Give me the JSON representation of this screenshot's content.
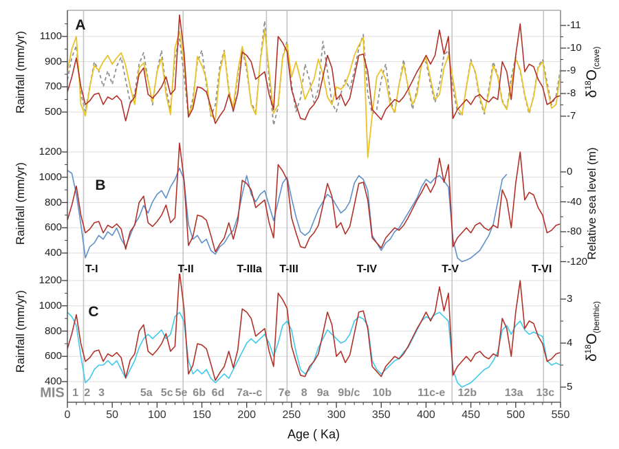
{
  "figure": {
    "description": "Three stacked paleoclimate time-series panels comparing a rainfall reconstruction (dark red) with cave d18O (A), relative sea level (B) and benthic d18O (C) over the last 550 ka",
    "background": "#ffffff"
  },
  "colors": {
    "rainfall_red": "#B03028",
    "rainfall_yellow": "#E9C32A",
    "cave_dashed_gray": "#8F8F8F",
    "sea_level_blue": "#5E8FCB",
    "benthic_cyan": "#3EC9EC",
    "gridline": "#DCDCDC",
    "termination_line": "#C4C4C4",
    "frame_gray": "#999999",
    "axis_dark": "#3A3A3A",
    "mis_gray": "#8A8A8A"
  },
  "chart_data": {
    "type": "line",
    "x_axis": {
      "label": "Age ( Ka)",
      "range": [
        0,
        550
      ],
      "tick_labels": [
        0,
        50,
        100,
        150,
        200,
        250,
        300,
        350,
        400,
        450,
        500,
        550
      ],
      "minor_step": 10
    },
    "panels": [
      {
        "id": "A",
        "letter": "A",
        "left_axis": {
          "label": "Rainfall (mm/yr)",
          "tick_labels": [
            1100,
            900,
            700,
            500
          ],
          "range": [
            280,
            1300
          ]
        },
        "right_axis": {
          "label_parts": {
            "delta": "δ",
            "sup": "18",
            "main": "O",
            "sub": "(cave)"
          },
          "tick_labels": [
            -11,
            -10,
            -9,
            -8,
            -7
          ],
          "inverted": true
        },
        "series": [
          {
            "name": "cave-d18o-dashed",
            "data": "cave_d18o",
            "axis": "right",
            "color": "#8F8F8F",
            "dash": "5 4",
            "width": 1.8
          },
          {
            "name": "rainfall-yellow",
            "data": "rainfall_yellow",
            "axis": "left",
            "color": "#E9C32A",
            "dash": "",
            "width": 1.8
          },
          {
            "name": "rainfall-red",
            "data": "rainfall_red",
            "axis": "left",
            "color": "#B03028",
            "dash": "",
            "width": 1.6
          }
        ]
      },
      {
        "id": "B",
        "letter": "B",
        "left_axis": {
          "label": "Rainfall (mm/yr)",
          "tick_labels": [
            1200,
            1000,
            800,
            600,
            400
          ],
          "range": [
            280,
            1290
          ]
        },
        "right_axis": {
          "label": "Relative sea level (m)",
          "tick_labels": [
            0,
            -40,
            -80,
            -120
          ]
        },
        "series": [
          {
            "name": "sea-level-blue",
            "data": "sea_level",
            "axis": "right",
            "color": "#5E8FCB",
            "dash": "",
            "width": 1.6
          },
          {
            "name": "rainfall-red",
            "data": "rainfall_red",
            "axis": "left",
            "color": "#B03028",
            "dash": "",
            "width": 1.6
          }
        ]
      },
      {
        "id": "C",
        "letter": "C",
        "left_axis": {
          "label": "Rainfall (mm/yr)",
          "tick_labels": [
            1200,
            1000,
            800,
            600,
            400
          ],
          "range": [
            300,
            1250
          ]
        },
        "right_axis": {
          "label_parts": {
            "delta": "δ",
            "sup": "18",
            "main": "O",
            "sub": "(benthic)"
          },
          "tick_labels": [
            3,
            4,
            5
          ],
          "inverted": true
        },
        "series": [
          {
            "name": "benthic-d18o-cyan",
            "data": "benthic_d18o",
            "axis": "right",
            "color": "#3EC9EC",
            "dash": "",
            "width": 1.6
          },
          {
            "name": "rainfall-red",
            "data": "rainfall_red",
            "axis": "left",
            "color": "#B03028",
            "dash": "",
            "width": 1.6
          }
        ]
      }
    ],
    "series_data": {
      "rainfall_red": {
        "unit": "mm/yr",
        "x_start": 0,
        "x_step": 5,
        "values": [
          660,
          780,
          930,
          700,
          560,
          590,
          640,
          650,
          560,
          620,
          600,
          630,
          590,
          430,
          570,
          620,
          800,
          850,
          640,
          610,
          650,
          700,
          780,
          640,
          680,
          1270,
          980,
          460,
          530,
          700,
          690,
          660,
          540,
          410,
          470,
          520,
          640,
          510,
          650,
          975,
          950,
          900,
          760,
          790,
          820,
          640,
          520,
          1100,
          1050,
          980,
          680,
          560,
          450,
          440,
          520,
          560,
          620,
          780,
          950,
          850,
          600,
          640,
          550,
          610,
          780,
          950,
          960,
          820,
          520,
          480,
          440,
          520,
          560,
          600,
          580,
          620,
          680,
          750,
          820,
          880,
          950,
          880,
          950,
          1150,
          960,
          1100,
          450,
          520,
          560,
          600,
          560,
          620,
          640,
          600,
          580,
          620,
          600,
          900,
          820,
          600,
          950,
          1200,
          820,
          880,
          860,
          760,
          700,
          560,
          580,
          620,
          630
        ]
      },
      "rainfall_yellow": {
        "unit": "mm/yr",
        "x_start": 0,
        "x_step": 5,
        "values": [
          830,
          1000,
          1100,
          560,
          470,
          700,
          870,
          830,
          900,
          950,
          880,
          930,
          970,
          870,
          700,
          560,
          850,
          890,
          750,
          580,
          820,
          930,
          640,
          480,
          1010,
          1140,
          900,
          480,
          560,
          940,
          870,
          760,
          480,
          440,
          820,
          980,
          660,
          540,
          820,
          1020,
          870,
          560,
          480,
          900,
          1150,
          830,
          490,
          560,
          930,
          1040,
          780,
          900,
          760,
          600,
          680,
          760,
          920,
          800,
          620,
          560,
          700,
          680,
          720,
          820,
          950,
          1030,
          1090,
          140,
          480,
          780,
          840,
          760,
          560,
          500,
          720,
          880,
          700,
          560,
          640,
          880,
          930,
          760,
          600,
          640,
          850,
          950,
          760,
          540,
          480,
          700,
          900,
          820,
          620,
          500,
          650,
          870,
          780,
          580,
          520,
          720,
          920,
          840,
          640,
          500,
          620,
          850,
          900,
          700,
          530,
          560,
          820
        ]
      },
      "cave_d18o": {
        "unit": "permil VPDB",
        "x_start": 0,
        "x_step": 5,
        "values": [
          -8.6,
          -9.6,
          -10.1,
          -8.0,
          -7.2,
          -8.3,
          -9.4,
          -9.0,
          -8.3,
          -9.0,
          -8.4,
          -9.2,
          -9.6,
          -8.6,
          -7.6,
          -8.0,
          -9.3,
          -9.8,
          -8.6,
          -7.5,
          -9.0,
          -9.9,
          -8.2,
          -7.3,
          -9.6,
          -10.4,
          -8.8,
          -7.0,
          -7.8,
          -9.4,
          -9.9,
          -8.4,
          -7.0,
          -7.5,
          -9.2,
          -9.9,
          -8.2,
          -7.2,
          -8.8,
          -10.0,
          -9.0,
          -7.6,
          -7.2,
          -9.4,
          -11.2,
          -8.6,
          -6.6,
          -7.4,
          -9.6,
          -10.3,
          -8.4,
          -7.2,
          -7.8,
          -9.3,
          -8.6,
          -7.6,
          -8.2,
          -10.3,
          -9.0,
          -7.6,
          -7.2,
          -8.0,
          -8.6,
          -8.2,
          -9.0,
          -10.0,
          -10.6,
          -8.0,
          -7.1,
          -7.3,
          -8.6,
          -9.3,
          -7.8,
          -7.1,
          -8.4,
          -9.5,
          -8.2,
          -7.3,
          -8.2,
          -9.3,
          -9.4,
          -8.4,
          -7.6,
          -8.4,
          -9.7,
          -9.9,
          -8.2,
          -7.2,
          -7.0,
          -8.3,
          -9.5,
          -8.9,
          -7.7,
          -7.1,
          -8.2,
          -9.4,
          -8.8,
          -7.7,
          -7.3,
          -8.7,
          -9.6,
          -9.0,
          -7.9,
          -7.1,
          -7.9,
          -9.2,
          -9.5,
          -8.5,
          -7.5,
          -7.9,
          -9.1
        ]
      },
      "sea_level": {
        "unit": "m",
        "x_start": 0,
        "x_step": 5,
        "values": [
          2,
          -2,
          -30,
          -70,
          -115,
          -100,
          -95,
          -85,
          -90,
          -80,
          -85,
          -75,
          -90,
          -100,
          -85,
          -70,
          -60,
          -45,
          -55,
          -40,
          -30,
          -25,
          -35,
          -20,
          -10,
          5,
          -10,
          -70,
          -90,
          -85,
          -95,
          -90,
          -105,
          -110,
          -100,
          -95,
          -85,
          -78,
          -60,
          -30,
          -5,
          -30,
          -40,
          -30,
          -25,
          -45,
          -65,
          -40,
          -15,
          -7,
          -35,
          -60,
          -80,
          -85,
          -80,
          -65,
          -50,
          -40,
          -30,
          -35,
          -45,
          -55,
          -50,
          -40,
          -15,
          -5,
          -10,
          -25,
          -85,
          -95,
          -105,
          -95,
          -90,
          -80,
          -75,
          -65,
          -55,
          -45,
          -35,
          -20,
          -10,
          -15,
          -8,
          -5,
          -12,
          -20,
          -90,
          -115,
          -120,
          -118,
          -115,
          -110,
          -105,
          -95,
          -85,
          -70,
          -40,
          -10,
          -3
        ]
      },
      "benthic_d18o": {
        "unit": "permil VPDB",
        "x_start": 0,
        "x_step": 5,
        "values": [
          3.3,
          3.4,
          3.6,
          4.3,
          4.9,
          4.8,
          4.6,
          4.5,
          4.5,
          4.4,
          4.5,
          4.4,
          4.6,
          4.8,
          4.6,
          4.4,
          4.1,
          3.9,
          3.8,
          3.9,
          3.8,
          3.7,
          3.9,
          3.8,
          3.4,
          3.3,
          3.5,
          4.4,
          4.7,
          4.6,
          4.7,
          4.6,
          4.8,
          4.9,
          4.8,
          4.7,
          4.8,
          4.6,
          4.4,
          4.2,
          4.0,
          3.9,
          4.0,
          3.9,
          3.8,
          4.0,
          4.3,
          4.0,
          3.6,
          3.5,
          3.7,
          4.2,
          4.6,
          4.7,
          4.6,
          4.4,
          4.1,
          3.9,
          3.7,
          3.8,
          3.9,
          4.0,
          3.95,
          3.8,
          3.5,
          3.4,
          3.45,
          3.6,
          4.4,
          4.6,
          4.7,
          4.6,
          4.5,
          4.4,
          4.35,
          4.2,
          4.1,
          3.9,
          3.7,
          3.5,
          3.4,
          3.45,
          3.35,
          3.3,
          3.4,
          3.5,
          4.6,
          4.9,
          5.0,
          4.95,
          4.9,
          4.8,
          4.7,
          4.6,
          4.55,
          4.4,
          4.2,
          3.7,
          3.6,
          3.8,
          3.6,
          3.5,
          3.7,
          3.8,
          3.75,
          3.8,
          3.85,
          4.4,
          4.5,
          4.45,
          4.5
        ]
      }
    },
    "terminations": [
      {
        "label": "T-I",
        "line_age": 18,
        "label_age": 27,
        "has_line": true
      },
      {
        "label": "T-II",
        "line_age": 129,
        "label_age": 132,
        "has_line": true
      },
      {
        "label": "T-IIIa",
        "line_age": 222,
        "label_age": 203,
        "has_line": true
      },
      {
        "label": "T-III",
        "line_age": 245,
        "label_age": 247,
        "has_line": true
      },
      {
        "label": "T-IV",
        "line_age": 335,
        "label_age": 334,
        "has_line": false
      },
      {
        "label": "T-V",
        "line_age": 429,
        "label_age": 427,
        "has_line": true
      },
      {
        "label": "T-VI",
        "line_age": 531,
        "label_age": 529,
        "has_line": true
      }
    ],
    "mis": {
      "header": "MIS",
      "stages": [
        {
          "label": "1",
          "age": 9
        },
        {
          "label": "2",
          "age": 22
        },
        {
          "label": "3",
          "age": 38
        },
        {
          "label": "5a",
          "age": 88
        },
        {
          "label": "5c",
          "age": 111
        },
        {
          "label": "5e",
          "age": 127
        },
        {
          "label": "6b",
          "age": 147
        },
        {
          "label": "6d",
          "age": 168
        },
        {
          "label": "7a--c",
          "age": 203
        },
        {
          "label": "7e",
          "age": 242
        },
        {
          "label": "8",
          "age": 264
        },
        {
          "label": "9a",
          "age": 285
        },
        {
          "label": "9b/c",
          "age": 314
        },
        {
          "label": "10b",
          "age": 351
        },
        {
          "label": "11c-e",
          "age": 406
        },
        {
          "label": "12b",
          "age": 446
        },
        {
          "label": "13a",
          "age": 498
        },
        {
          "label": "13c",
          "age": 533
        }
      ]
    }
  }
}
